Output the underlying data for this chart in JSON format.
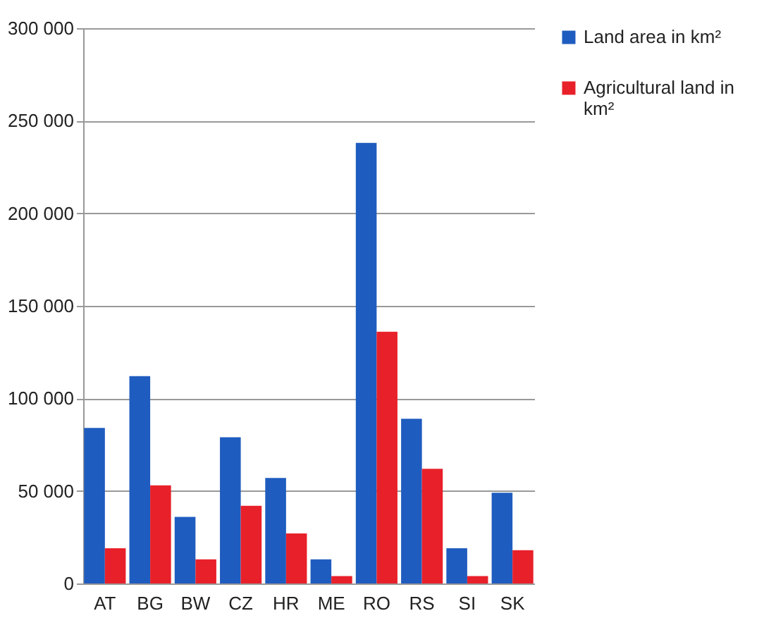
{
  "chart_data": {
    "type": "bar",
    "categories": [
      "AT",
      "BG",
      "BW",
      "CZ",
      "HR",
      "ME",
      "RO",
      "RS",
      "SI",
      "SK"
    ],
    "series": [
      {
        "name": "Land area in km²",
        "color": "#1f5cbf",
        "values": [
          84000,
          112000,
          36000,
          79000,
          57000,
          13000,
          238000,
          89000,
          19000,
          49000
        ]
      },
      {
        "name": "Agricultural  land in km²",
        "color": "#e8202a",
        "values": [
          19000,
          53000,
          13000,
          42000,
          27000,
          4000,
          136000,
          62000,
          4000,
          18000
        ]
      }
    ],
    "ylim": [
      0,
      300000
    ],
    "yticks": [
      {
        "value": 0,
        "label": "0"
      },
      {
        "value": 50000,
        "label": "50 000"
      },
      {
        "value": 100000,
        "label": "100 000"
      },
      {
        "value": 150000,
        "label": "150 000"
      },
      {
        "value": 200000,
        "label": "200 000"
      },
      {
        "value": 250000,
        "label": "250 000"
      },
      {
        "value": 300000,
        "label": "300 000"
      }
    ],
    "grid": "y",
    "legend": "right"
  }
}
